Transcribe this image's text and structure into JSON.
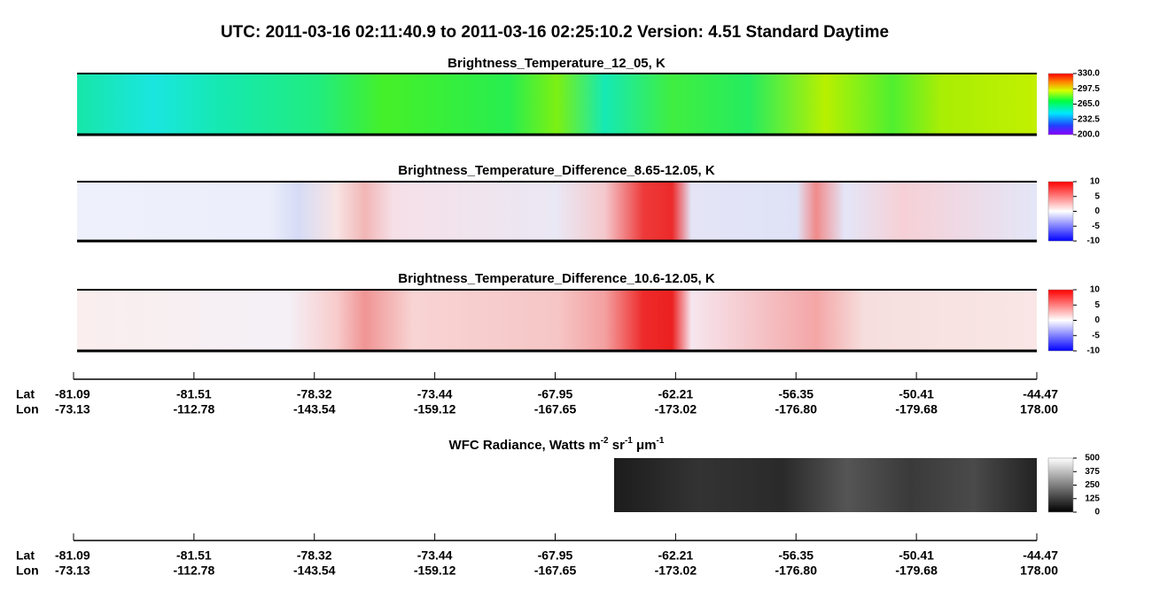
{
  "title": "UTC:  2011-03-16   02:11:40.9  to  2011-03-16   02:25:10.2    Version: 4.51  Standard Daytime",
  "panels": [
    {
      "title": "Brightness_Temperature_12_05, K",
      "colorbar_ticks": [
        {
          "value": 330,
          "label": "330.0"
        },
        {
          "value": 297.5,
          "label": "297.5"
        },
        {
          "value": 265,
          "label": "265.0"
        },
        232.5,
        {
          "value": 200,
          "label": "200.0"
        }
      ]
    },
    {
      "title": "Brightness_Temperature_Difference_8.65-12.05, K",
      "colorbar_ticks": [
        10,
        5,
        0,
        -5,
        -10
      ]
    },
    {
      "title": "Brightness_Temperature_Difference_10.6-12.05, K",
      "colorbar_ticks": [
        10,
        5,
        0,
        -5,
        -10
      ]
    },
    {
      "title_parts": [
        "WFC Radiance, Watts m",
        "-2",
        " sr",
        "-1",
        " μm",
        "-1"
      ],
      "colorbar_ticks": [
        500,
        375,
        250,
        125,
        0
      ]
    }
  ],
  "axis": {
    "lat_label": "Lat",
    "lon_label": "Lon",
    "lat": [
      -81.09,
      -81.51,
      -78.32,
      -73.44,
      -67.95,
      -62.21,
      -56.35,
      -50.41,
      -44.47
    ],
    "lon": [
      -73.13,
      -112.78,
      -143.54,
      -159.12,
      -167.65,
      -173.02,
      {
        "value": -176.8,
        "label": "-176.80"
      },
      -179.68,
      {
        "value": 178,
        "label": "178.00"
      }
    ]
  }
}
